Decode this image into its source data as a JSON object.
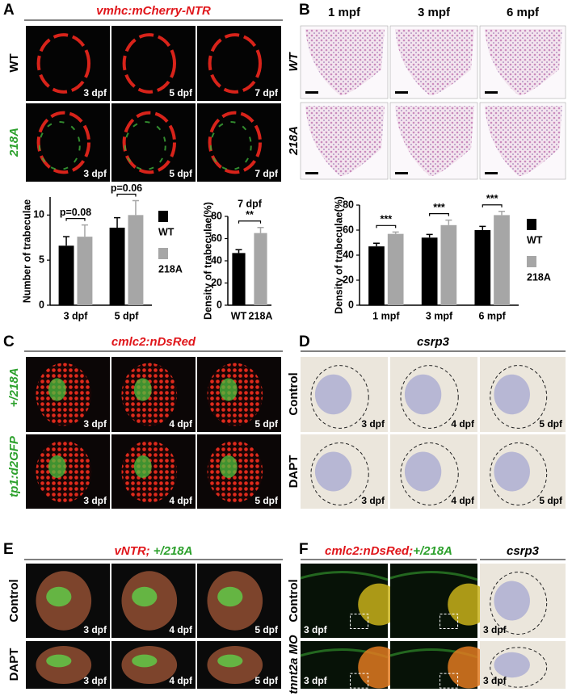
{
  "panels": {
    "A": {
      "letter": "A",
      "title": "vmhc:mCherry-NTR",
      "rows": [
        "WT",
        "218A"
      ],
      "labels": [
        [
          "3 dpf",
          "5 dpf",
          "7 dpf"
        ],
        [
          "3 dpf",
          "5 dpf",
          "7 dpf"
        ]
      ]
    },
    "B": {
      "letter": "B",
      "columns": [
        "1 mpf",
        "3 mpf",
        "6 mpf"
      ],
      "rows": [
        "WT",
        "218A"
      ]
    },
    "C": {
      "letter": "C",
      "title": "cmlc2:nDsRed",
      "rows": [
        "+/218A",
        "tp1:d2GFP"
      ],
      "labels": [
        [
          "3 dpf",
          "4 dpf",
          "5 dpf"
        ],
        [
          "3 dpf",
          "4 dpf",
          "5 dpf"
        ]
      ]
    },
    "D": {
      "letter": "D",
      "title": "csrp3",
      "rows": [
        "Control",
        "DAPT"
      ],
      "labels": [
        [
          "3 dpf",
          "4 dpf",
          "5 dpf"
        ],
        [
          "3 dpf",
          "4 dpf",
          "5 dpf"
        ]
      ]
    },
    "E": {
      "letter": "E",
      "title": [
        "vNTR;",
        "+/218A"
      ],
      "rows": [
        "Control",
        "DAPT"
      ],
      "labels": [
        [
          "3 dpf",
          "4 dpf",
          "5 dpf"
        ],
        [
          "3 dpf",
          "4 dpf",
          "5 dpf"
        ]
      ]
    },
    "F": {
      "letter": "F",
      "title": [
        "cmlc2:nDsRed;",
        "+/218A"
      ],
      "title2": "csrp3",
      "rows": [
        "Control",
        "tnnt2a MO"
      ],
      "labels": [
        [
          "3 dpf",
          "3 dpf"
        ],
        [
          "3 dpf",
          "3 dpf"
        ]
      ]
    }
  },
  "chart_data": [
    {
      "type": "bar",
      "ylabel": "Number of trabeculae",
      "categories": [
        "3 dpf",
        "5 dpf"
      ],
      "series": [
        {
          "name": "WT",
          "color": "#000000",
          "values": [
            6.6,
            8.6
          ],
          "errors": [
            1.0,
            1.1
          ]
        },
        {
          "name": "218A",
          "color": "#a6a6a6",
          "values": [
            7.6,
            10.0
          ],
          "errors": [
            1.3,
            1.6
          ]
        }
      ],
      "ylim": [
        0,
        12
      ],
      "yticks": [
        0,
        5,
        10
      ],
      "annotations": [
        "p=0.08",
        "p=0.06"
      ],
      "legend": "right"
    },
    {
      "type": "bar",
      "title": "7 dpf",
      "ylabel": "Density of trabeculae(%)",
      "categories": [
        "WT",
        "218A"
      ],
      "values": [
        47,
        65
      ],
      "errors": [
        3,
        5
      ],
      "colors": [
        "#000000",
        "#a6a6a6"
      ],
      "ylim": [
        0,
        80
      ],
      "yticks": [
        0,
        20,
        40,
        60,
        80
      ],
      "annotations": [
        "**"
      ]
    },
    {
      "type": "bar",
      "ylabel": "Density of trabeculae(%)",
      "categories": [
        "1 mpf",
        "3 mpf",
        "6 mpf"
      ],
      "series": [
        {
          "name": "WT",
          "color": "#000000",
          "values": [
            47,
            54,
            60
          ],
          "errors": [
            2.5,
            2.5,
            3
          ]
        },
        {
          "name": "218A",
          "color": "#a6a6a6",
          "values": [
            57,
            64,
            72
          ],
          "errors": [
            1.5,
            4,
            3
          ]
        }
      ],
      "ylim": [
        0,
        80
      ],
      "yticks": [
        0,
        20,
        40,
        60,
        80
      ],
      "annotations": [
        "***",
        "***",
        "***"
      ],
      "legend": "right"
    }
  ]
}
